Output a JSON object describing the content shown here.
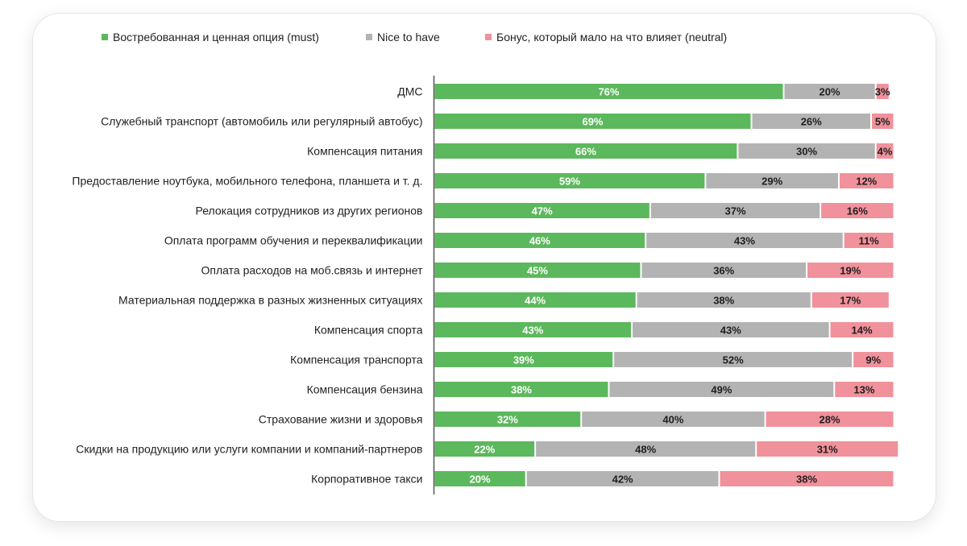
{
  "chart_data": {
    "type": "bar",
    "orientation": "horizontal",
    "stacked": true,
    "xlim": [
      0,
      100
    ],
    "categories": [
      "ДМС",
      "Служебный транспорт (автомобиль или регулярный автобус)",
      "Компенсация питания",
      "Предоставление ноутбука, мобильного телефона, планшета и т. д.",
      "Релокация сотрудников из других регионов",
      "Оплата программ обучения и переквалификации",
      "Оплата расходов на моб.связь и интернет",
      "Материальная поддержка в разных жизненных ситуациях",
      "Компенсация спорта",
      "Компенсация транспорта",
      "Компенсация бензина",
      "Страхование жизни и здоровья",
      "Скидки на продукцию или услуги компании и компаний-партнеров",
      "Корпоративное такси"
    ],
    "series": [
      {
        "name": "Востребованная и ценная опция (must)",
        "color": "#5cb85c",
        "label_color": "#ffffff",
        "values": [
          76,
          69,
          66,
          59,
          47,
          46,
          45,
          44,
          43,
          39,
          38,
          32,
          22,
          20
        ],
        "labels": [
          "76%",
          "69%",
          "66%",
          "59%",
          "47%",
          "46%",
          "45%",
          "44%",
          "43%",
          "39%",
          "38%",
          "32%",
          "22%",
          "20%"
        ]
      },
      {
        "name": "Nice to have",
        "color": "#b3b3b3",
        "label_color": "#1f1f1f",
        "values": [
          20,
          26,
          30,
          29,
          37,
          43,
          36,
          38,
          43,
          52,
          49,
          40,
          48,
          42
        ],
        "labels": [
          "20%",
          "26%",
          "30%",
          "29%",
          "37%",
          "43%",
          "36%",
          "38%",
          "43%",
          "52%",
          "49%",
          "40%",
          "48%",
          "42%"
        ]
      },
      {
        "name": "Бонус, который мало на что влияет (neutral)",
        "color": "#f0919b",
        "label_color": "#1f1f1f",
        "values": [
          3,
          5,
          4,
          12,
          16,
          11,
          19,
          17,
          14,
          9,
          13,
          28,
          31,
          38
        ],
        "labels": [
          "3%",
          "5%",
          "4%",
          "12%",
          "16%",
          "11%",
          "19%",
          "17%",
          "14%",
          "9%",
          "13%",
          "28%",
          "31%",
          "38%"
        ]
      }
    ]
  }
}
